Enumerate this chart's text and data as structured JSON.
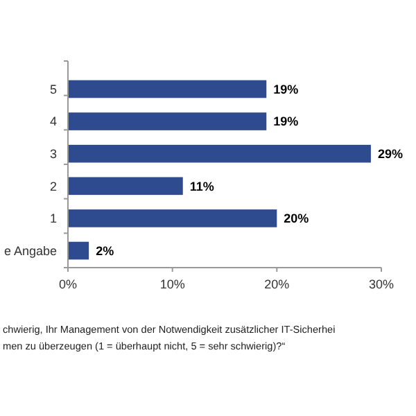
{
  "chart_data": {
    "type": "bar",
    "orientation": "horizontal",
    "categories": [
      "5",
      "4",
      "3",
      "2",
      "1",
      "e Angabe"
    ],
    "values": [
      19,
      19,
      29,
      11,
      20,
      2
    ],
    "value_labels": [
      "19%",
      "19%",
      "29%",
      "11%",
      "20%",
      "2%"
    ],
    "color": "#2f4b8f",
    "xlim": [
      0,
      30
    ],
    "xticks": [
      {
        "value": 0,
        "label": "0%"
      },
      {
        "value": 10,
        "label": "10%"
      },
      {
        "value": 20,
        "label": "20%"
      },
      {
        "value": 30,
        "label": "30%"
      }
    ],
    "annotations": [
      "chwierig, Ihr Management von der Notwendigkeit zusätzlicher IT-Sicherhei",
      "men zu überzeugen (1 = überhaupt nicht, 5 = sehr schwierig)?“"
    ]
  }
}
